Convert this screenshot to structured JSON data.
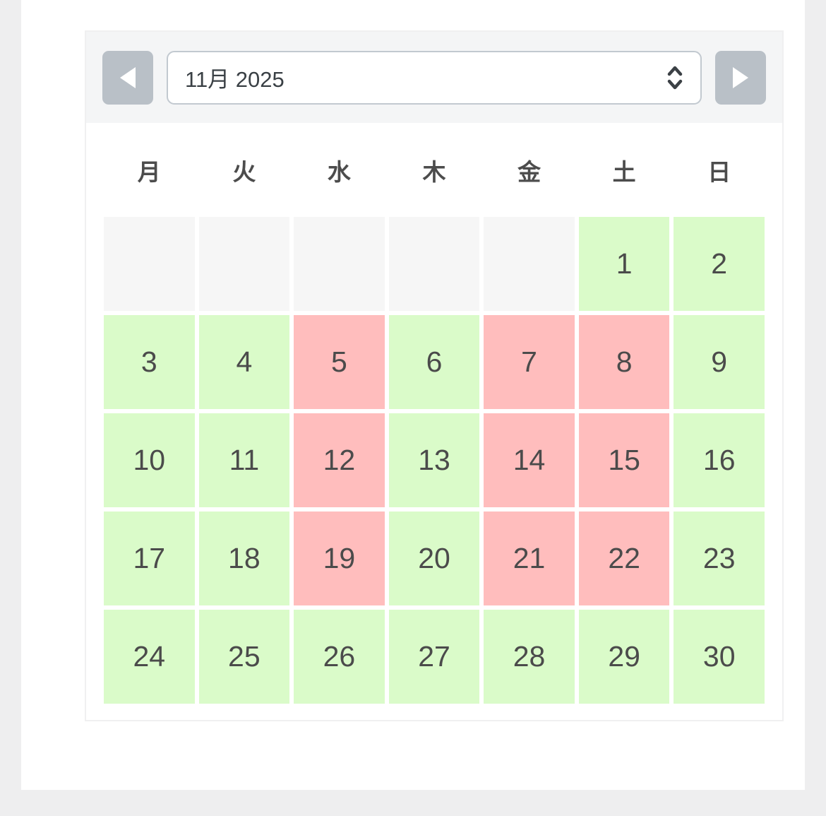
{
  "toolbar": {
    "prev_button_name": "previous month",
    "next_button_name": "next month",
    "month_select": {
      "value": "11月 2025"
    }
  },
  "weekdays": [
    "月",
    "火",
    "水",
    "木",
    "金",
    "土",
    "日"
  ],
  "weeks": [
    [
      {
        "label": "",
        "status": "empty"
      },
      {
        "label": "",
        "status": "empty"
      },
      {
        "label": "",
        "status": "empty"
      },
      {
        "label": "",
        "status": "empty"
      },
      {
        "label": "",
        "status": "empty"
      },
      {
        "label": "1",
        "status": "available"
      },
      {
        "label": "2",
        "status": "available"
      }
    ],
    [
      {
        "label": "3",
        "status": "available"
      },
      {
        "label": "4",
        "status": "available"
      },
      {
        "label": "5",
        "status": "unavailable"
      },
      {
        "label": "6",
        "status": "available"
      },
      {
        "label": "7",
        "status": "unavailable"
      },
      {
        "label": "8",
        "status": "unavailable"
      },
      {
        "label": "9",
        "status": "available"
      }
    ],
    [
      {
        "label": "10",
        "status": "available"
      },
      {
        "label": "11",
        "status": "available"
      },
      {
        "label": "12",
        "status": "unavailable"
      },
      {
        "label": "13",
        "status": "available"
      },
      {
        "label": "14",
        "status": "unavailable"
      },
      {
        "label": "15",
        "status": "unavailable"
      },
      {
        "label": "16",
        "status": "available"
      }
    ],
    [
      {
        "label": "17",
        "status": "available"
      },
      {
        "label": "18",
        "status": "available"
      },
      {
        "label": "19",
        "status": "unavailable"
      },
      {
        "label": "20",
        "status": "available"
      },
      {
        "label": "21",
        "status": "unavailable"
      },
      {
        "label": "22",
        "status": "unavailable"
      },
      {
        "label": "23",
        "status": "available"
      }
    ],
    [
      {
        "label": "24",
        "status": "available"
      },
      {
        "label": "25",
        "status": "available"
      },
      {
        "label": "26",
        "status": "available"
      },
      {
        "label": "27",
        "status": "available"
      },
      {
        "label": "28",
        "status": "available"
      },
      {
        "label": "29",
        "status": "available"
      },
      {
        "label": "30",
        "status": "available"
      }
    ]
  ],
  "colors": {
    "available": "#dafbc9",
    "unavailable": "#ffbdbd",
    "empty": "#f6f6f6",
    "nav_button": "#b9c0c7",
    "toolbar_bg": "#f4f5f6"
  }
}
